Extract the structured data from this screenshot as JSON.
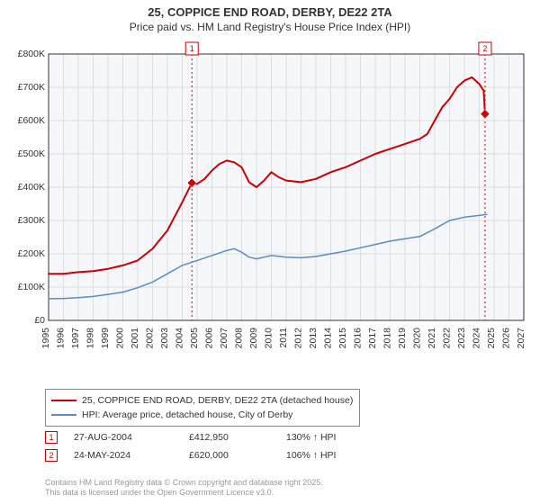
{
  "title": {
    "line1": "25, COPPICE END ROAD, DERBY, DE22 2TA",
    "line2": "Price paid vs. HM Land Registry's House Price Index (HPI)"
  },
  "chart": {
    "type": "line",
    "background_color": "#f5f7fb",
    "plot_bg_color": "#f5f7fb",
    "outer_bg_color": "#ffffff",
    "grid_color": "#dddddd",
    "axis_color": "#333333",
    "xlim": [
      1995,
      2027
    ],
    "ylim": [
      0,
      800000
    ],
    "ytick_step": 100000,
    "yticks": [
      "£0",
      "£100K",
      "£200K",
      "£300K",
      "£400K",
      "£500K",
      "£600K",
      "£700K",
      "£800K"
    ],
    "xticks": [
      1995,
      1996,
      1997,
      1998,
      1999,
      2000,
      2001,
      2002,
      2003,
      2004,
      2005,
      2006,
      2007,
      2008,
      2009,
      2010,
      2011,
      2012,
      2013,
      2014,
      2015,
      2016,
      2017,
      2018,
      2019,
      2020,
      2021,
      2022,
      2023,
      2024,
      2025,
      2026,
      2027
    ],
    "series": [
      {
        "name": "25, COPPICE END ROAD, DERBY, DE22 2TA (detached house)",
        "color": "#cc0000",
        "line_width": 2,
        "data": [
          [
            1995,
            140000
          ],
          [
            1996,
            140000
          ],
          [
            1997,
            145000
          ],
          [
            1998,
            148000
          ],
          [
            1999,
            155000
          ],
          [
            2000,
            165000
          ],
          [
            2001,
            180000
          ],
          [
            2002,
            215000
          ],
          [
            2003,
            270000
          ],
          [
            2004,
            355000
          ],
          [
            2004.65,
            412950
          ],
          [
            2005,
            410000
          ],
          [
            2005.5,
            425000
          ],
          [
            2006,
            450000
          ],
          [
            2006.5,
            470000
          ],
          [
            2007,
            480000
          ],
          [
            2007.5,
            475000
          ],
          [
            2008,
            460000
          ],
          [
            2008.5,
            415000
          ],
          [
            2009,
            400000
          ],
          [
            2009.5,
            420000
          ],
          [
            2010,
            445000
          ],
          [
            2010.5,
            430000
          ],
          [
            2011,
            420000
          ],
          [
            2012,
            415000
          ],
          [
            2013,
            425000
          ],
          [
            2014,
            445000
          ],
          [
            2015,
            460000
          ],
          [
            2016,
            480000
          ],
          [
            2017,
            500000
          ],
          [
            2018,
            515000
          ],
          [
            2019,
            530000
          ],
          [
            2020,
            545000
          ],
          [
            2020.5,
            560000
          ],
          [
            2021,
            600000
          ],
          [
            2021.5,
            640000
          ],
          [
            2022,
            665000
          ],
          [
            2022.5,
            700000
          ],
          [
            2023,
            720000
          ],
          [
            2023.5,
            730000
          ],
          [
            2024,
            710000
          ],
          [
            2024.3,
            690000
          ],
          [
            2024.39,
            620000
          ]
        ]
      },
      {
        "name": "HPI: Average price, detached house, City of Derby",
        "color": "#5b8bc5",
        "line_width": 1.5,
        "data": [
          [
            1995,
            65000
          ],
          [
            1996,
            66000
          ],
          [
            1997,
            68000
          ],
          [
            1998,
            72000
          ],
          [
            1999,
            78000
          ],
          [
            2000,
            85000
          ],
          [
            2001,
            98000
          ],
          [
            2002,
            115000
          ],
          [
            2003,
            140000
          ],
          [
            2004,
            165000
          ],
          [
            2005,
            180000
          ],
          [
            2006,
            195000
          ],
          [
            2007,
            210000
          ],
          [
            2007.5,
            215000
          ],
          [
            2008,
            205000
          ],
          [
            2008.5,
            190000
          ],
          [
            2009,
            185000
          ],
          [
            2010,
            195000
          ],
          [
            2011,
            190000
          ],
          [
            2012,
            188000
          ],
          [
            2013,
            192000
          ],
          [
            2014,
            200000
          ],
          [
            2015,
            208000
          ],
          [
            2016,
            218000
          ],
          [
            2017,
            228000
          ],
          [
            2018,
            238000
          ],
          [
            2019,
            245000
          ],
          [
            2020,
            252000
          ],
          [
            2021,
            275000
          ],
          [
            2022,
            300000
          ],
          [
            2023,
            310000
          ],
          [
            2024,
            315000
          ],
          [
            2024.5,
            318000
          ]
        ]
      }
    ],
    "sale_markers": [
      {
        "badge": "1",
        "x": 2004.65,
        "y": 412950,
        "line_color": "#cc0000"
      },
      {
        "badge": "2",
        "x": 2024.39,
        "y": 620000,
        "line_color": "#cc0000"
      }
    ]
  },
  "legend": {
    "items": [
      {
        "color": "#cc0000",
        "label": "25, COPPICE END ROAD, DERBY, DE22 2TA (detached house)"
      },
      {
        "color": "#5b8bc5",
        "label": "HPI: Average price, detached house, City of Derby"
      }
    ]
  },
  "sales": [
    {
      "badge": "1",
      "date": "27-AUG-2004",
      "price": "£412,950",
      "hpi": "130% ↑ HPI"
    },
    {
      "badge": "2",
      "date": "24-MAY-2024",
      "price": "£620,000",
      "hpi": "106% ↑ HPI"
    }
  ],
  "footer": {
    "line1": "Contains HM Land Registry data © Crown copyright and database right 2025.",
    "line2": "This data is licensed under the Open Government Licence v3.0."
  },
  "colors": {
    "badge_border": "#cc0000",
    "badge_text": "#cc0000",
    "footer_text": "#999999"
  }
}
